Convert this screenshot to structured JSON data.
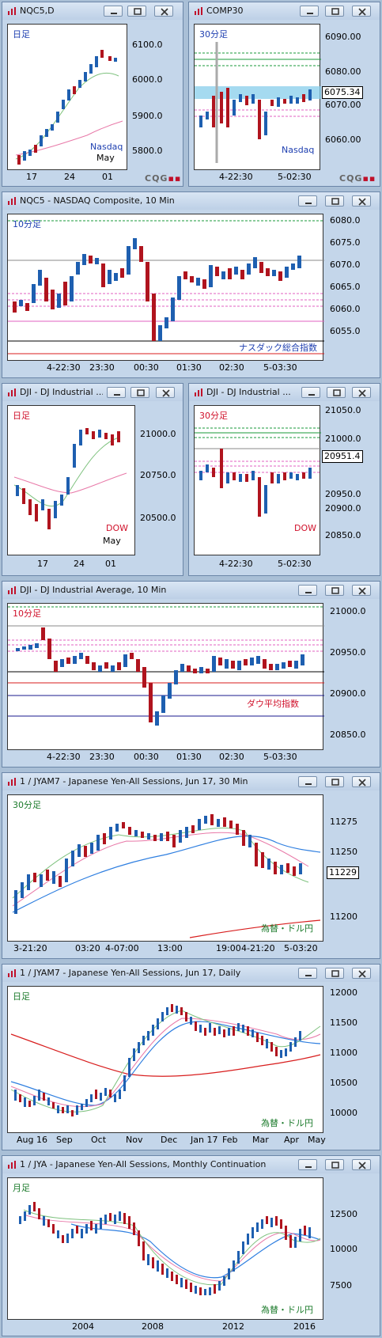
{
  "colors": {
    "up": "#1e5fb0",
    "down": "#b0141e",
    "ma_green": "#7fc27f",
    "ma_pink": "#e879a8",
    "ma_blue": "#2f7fe0",
    "ma_red": "#d81e1e",
    "green_line": "#1a9a3a",
    "pink_line": "#e060c0",
    "gray_line": "#888888",
    "navy_line": "#1a1a8c"
  },
  "brand": {
    "text": "CQG",
    "accent": "▪▪"
  },
  "windows": {
    "w1": {
      "title": "NQC5,D",
      "timeframe": "日足",
      "symbol": "Nasdaq",
      "month": "May",
      "y_labels": [
        "6100.0",
        "6000.0",
        "5900.0",
        "5800.0"
      ],
      "x_labels": [
        "17",
        "24",
        "01"
      ]
    },
    "w2": {
      "title": "COMP30",
      "timeframe": "30分足",
      "symbol": "Nasdaq",
      "price": "6075.34",
      "y_labels": [
        "6090.00",
        "6080.00",
        "6070.00",
        "6060.00"
      ],
      "x_labels": [
        "4-22:30",
        "5-02:30"
      ]
    },
    "w3": {
      "title": "NQC5 - NASDAQ Composite, 10 Min",
      "timeframe": "10分足",
      "symbol": "ナスダック総合指数",
      "y_labels": [
        "6080.0",
        "6075.0",
        "6070.0",
        "6065.0",
        "6060.0",
        "6055.0"
      ],
      "x_labels": [
        "4-22:30",
        "23:30",
        "00:30",
        "01:30",
        "02:30",
        "5-03:30"
      ]
    },
    "w4": {
      "title": "DJI - DJ Industrial ...",
      "timeframe": "日足",
      "symbol": "DOW",
      "month": "May",
      "y_labels": [
        "21000.0",
        "20750.0",
        "20500.0"
      ],
      "x_labels": [
        "17",
        "24",
        "01"
      ]
    },
    "w5": {
      "title": "DJI - DJ Industrial ...",
      "timeframe": "30分足",
      "symbol": "DOW",
      "price": "20951.4",
      "y_labels": [
        "21050.0",
        "21000.0",
        "20950.0",
        "20900.0",
        "20850.0"
      ],
      "x_labels": [
        "4-22:30",
        "5-02:30"
      ]
    },
    "w6": {
      "title": "DJI - DJ Industrial Average, 10 Min",
      "timeframe": "10分足",
      "symbol": "ダウ平均指数",
      "y_labels": [
        "21000.0",
        "20950.0",
        "20900.0",
        "20850.0"
      ],
      "x_labels": [
        "4-22:30",
        "23:30",
        "00:30",
        "01:30",
        "02:30",
        "5-03:30"
      ]
    },
    "w7": {
      "title": "1 / JYAM7 - Japanese Yen-All Sessions, Jun 17, 30 Min",
      "timeframe": "30分足",
      "symbol": "為替・ドル円",
      "price": "11229",
      "y_labels": [
        "11275",
        "11250",
        "11200"
      ],
      "x_labels": [
        "3-21:20",
        "03:20",
        "4-07:00",
        "13:00",
        "19:00",
        "4-21:20",
        "5-03:20"
      ]
    },
    "w8": {
      "title": "1 / JYAM7 - Japanese Yen-All Sessions, Jun 17, Daily",
      "timeframe": "日足",
      "symbol": "為替・ドル円",
      "y_labels": [
        "12000",
        "11500",
        "11000",
        "10500",
        "10000"
      ],
      "x_labels": [
        "Aug 16",
        "Sep",
        "Oct",
        "Nov",
        "Dec",
        "Jan 17",
        "Feb",
        "Mar",
        "Apr",
        "May"
      ]
    },
    "w9": {
      "title": "1 / JYA - Japanese Yen-All Sessions, Monthly Continuation",
      "timeframe": "月足",
      "symbol": "為替・ドル円",
      "y_labels": [
        "12500",
        "10000",
        "7500"
      ],
      "x_labels": [
        "2004",
        "2008",
        "2012",
        "2016"
      ]
    }
  }
}
